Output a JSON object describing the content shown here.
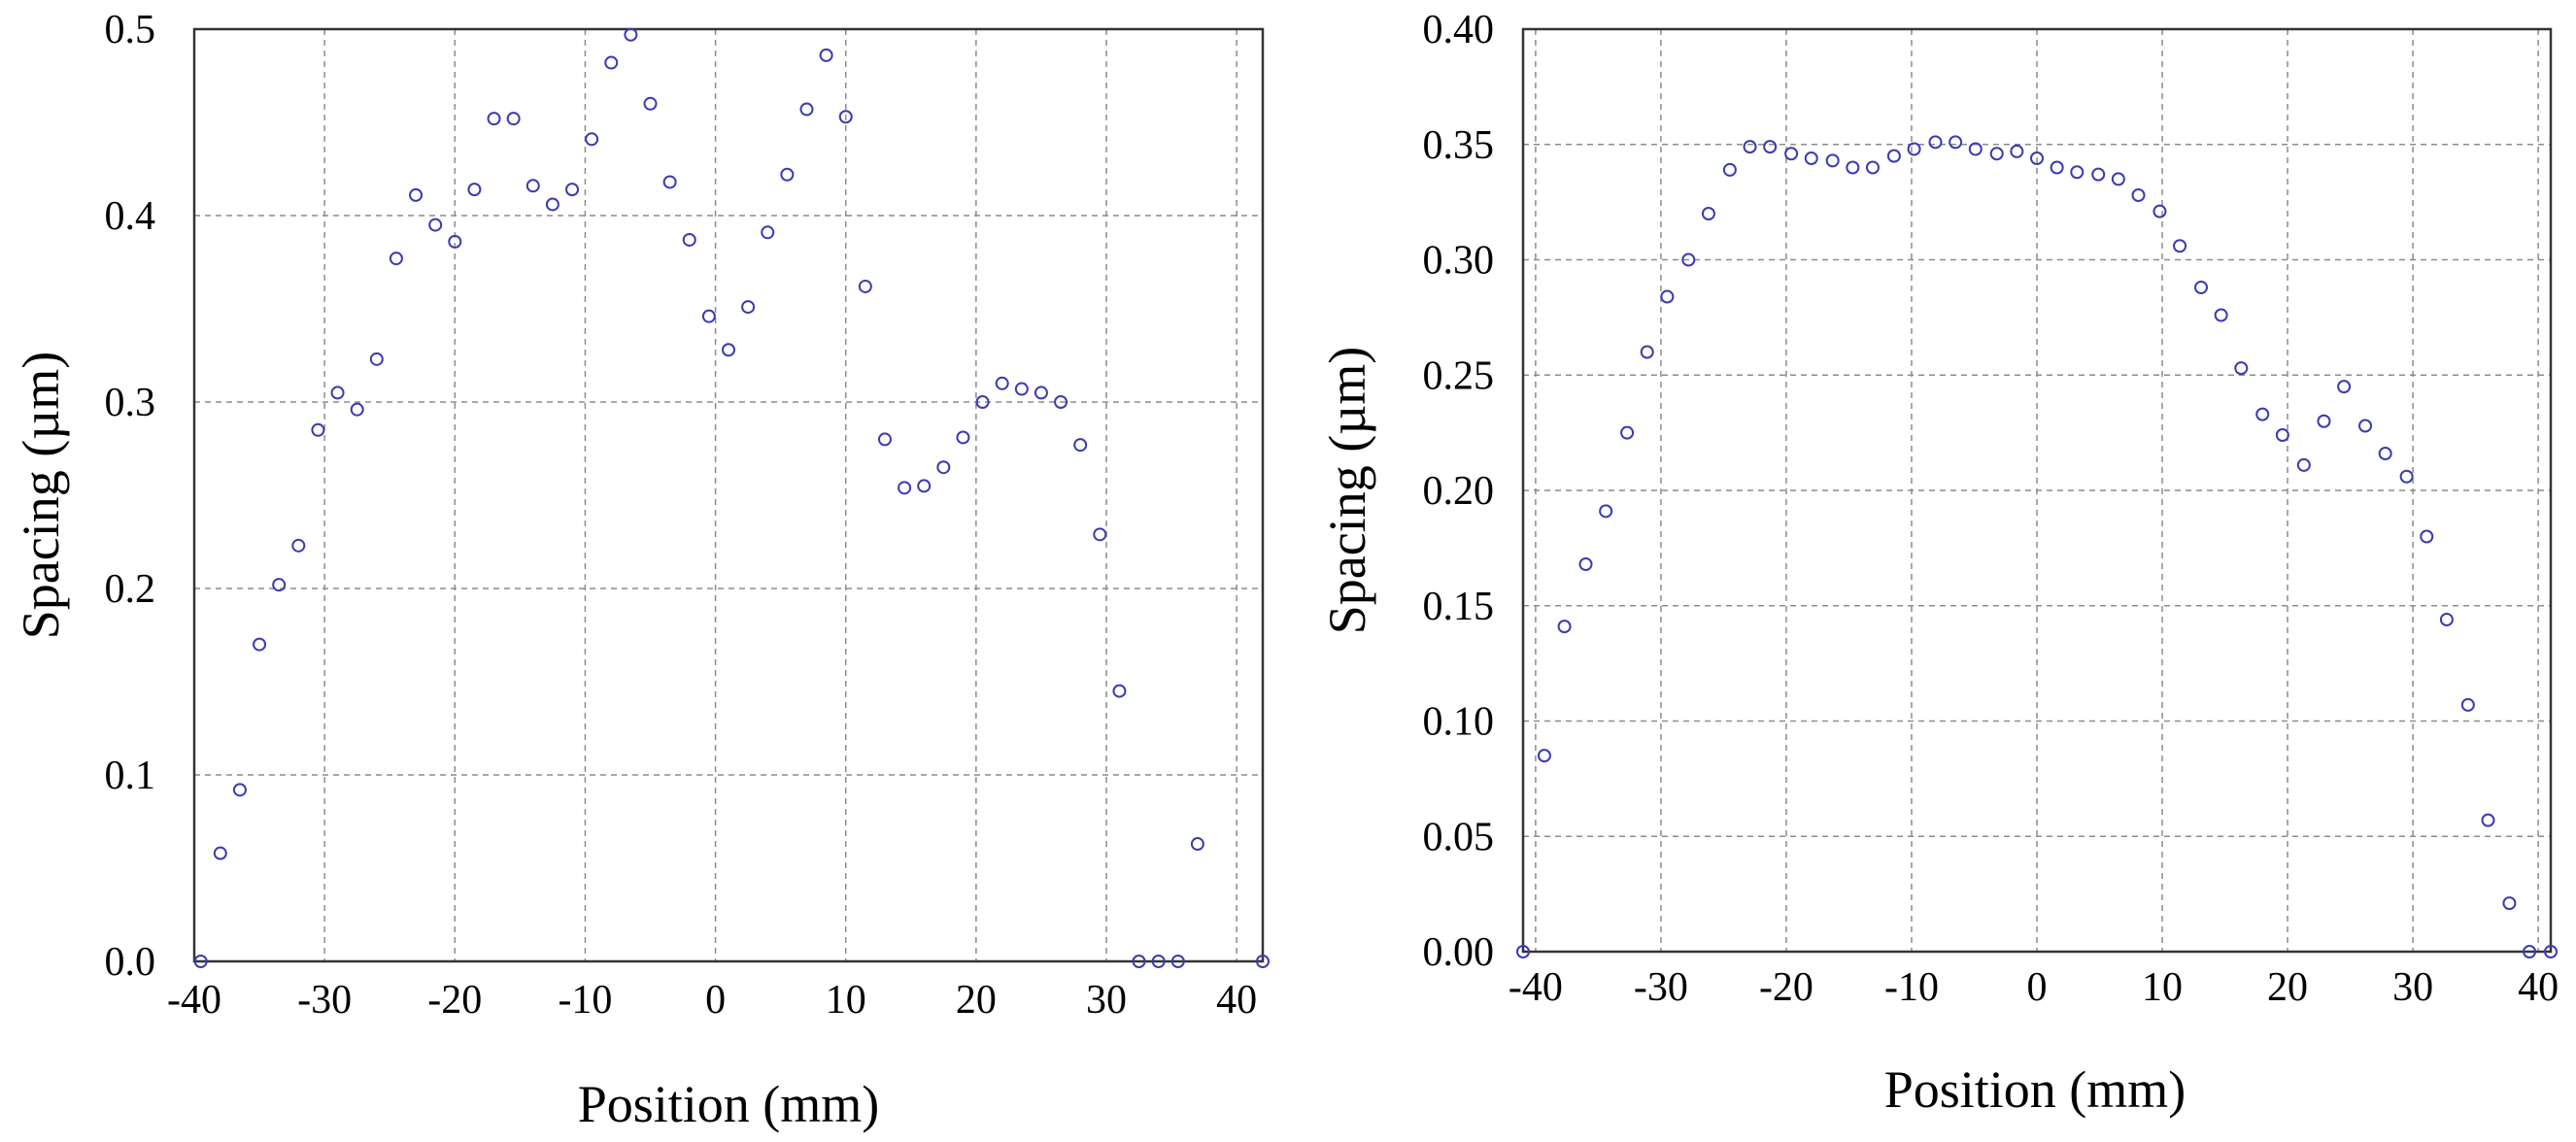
{
  "colors": {
    "marker": "#3b3bb3",
    "grid": "#8c8c8c",
    "frame": "#333333"
  },
  "chart_data": [
    {
      "type": "scatter",
      "xlabel": "Position (mm)",
      "ylabel": "Spacing  (µm)",
      "xlim": [
        -40,
        42
      ],
      "ylim": [
        0,
        0.5
      ],
      "xticks": [
        -40,
        -30,
        -20,
        -10,
        0,
        10,
        20,
        30,
        40
      ],
      "xtick_labels": [
        "-40",
        "-30",
        "-20",
        "-10",
        "0",
        "10",
        "20",
        "30",
        "40"
      ],
      "yticks": [
        0,
        0.1,
        0.2,
        0.3,
        0.4,
        0.5
      ],
      "ytick_labels": [
        "0.0",
        "0.1",
        "0.2",
        "0.3",
        "0.4",
        "0.5"
      ],
      "grid": true,
      "x": [
        -39.5,
        -38.0,
        -36.5,
        -35.0,
        -33.5,
        -32.0,
        -30.5,
        -29.0,
        -27.5,
        -26.0,
        -24.5,
        -23.0,
        -21.5,
        -20.0,
        -18.5,
        -17.0,
        -15.5,
        -14.0,
        -12.5,
        -11.0,
        -9.5,
        -8.0,
        -6.5,
        -5.0,
        -3.5,
        -2.0,
        -0.5,
        1.0,
        2.5,
        4.0,
        5.5,
        7.0,
        8.5,
        10.0,
        11.5,
        13.0,
        14.5,
        16.0,
        17.5,
        19.0,
        20.5,
        22.0,
        23.5,
        25.0,
        26.5,
        28.0,
        29.5,
        31.0,
        32.5,
        34.0,
        35.5,
        37.0,
        42.0
      ],
      "y": [
        0.0,
        0.058,
        0.092,
        0.17,
        0.202,
        0.223,
        0.285,
        0.305,
        0.296,
        0.323,
        0.377,
        0.411,
        0.395,
        0.386,
        0.414,
        0.452,
        0.452,
        0.416,
        0.406,
        0.414,
        0.441,
        0.482,
        0.497,
        0.46,
        0.418,
        0.387,
        0.346,
        0.328,
        0.351,
        0.391,
        0.422,
        0.457,
        0.486,
        0.453,
        0.362,
        0.28,
        0.254,
        0.255,
        0.265,
        0.281,
        0.3,
        0.31,
        0.307,
        0.305,
        0.3,
        0.277,
        0.229,
        0.145,
        0.0,
        0.0,
        0.0,
        0.063,
        0.0
      ]
    },
    {
      "type": "scatter",
      "xlabel": "Position (mm)",
      "ylabel": "Spacing  (µm)",
      "xlim": [
        -41,
        41
      ],
      "ylim": [
        0,
        0.4
      ],
      "xticks": [
        -40,
        -30,
        -20,
        -10,
        0,
        10,
        20,
        30,
        40
      ],
      "xtick_labels": [
        "-40",
        "-30",
        "-20",
        "-10",
        "0",
        "10",
        "20",
        "30",
        "40"
      ],
      "yticks": [
        0,
        0.05,
        0.1,
        0.15,
        0.2,
        0.25,
        0.3,
        0.35,
        0.4
      ],
      "ytick_labels": [
        "0.00",
        "0.05",
        "0.10",
        "0.15",
        "0.20",
        "0.25",
        "0.30",
        "0.35",
        "0.40"
      ],
      "grid": true,
      "x": [
        -41.0,
        -39.3,
        -37.7,
        -36.0,
        -34.4,
        -32.7,
        -31.1,
        -29.5,
        -27.8,
        -26.2,
        -24.5,
        -22.9,
        -21.3,
        -19.6,
        -18.0,
        -16.3,
        -14.7,
        -13.1,
        -11.4,
        -9.8,
        -8.1,
        -6.5,
        -4.9,
        -3.2,
        -1.6,
        0.0,
        1.6,
        3.2,
        4.9,
        6.5,
        8.1,
        9.8,
        11.4,
        13.1,
        14.7,
        16.3,
        18.0,
        19.6,
        21.3,
        22.9,
        24.5,
        26.2,
        27.8,
        29.5,
        31.1,
        32.7,
        34.4,
        36.0,
        37.7,
        39.3,
        41.0
      ],
      "y": [
        0.0,
        0.085,
        0.141,
        0.168,
        0.191,
        0.225,
        0.26,
        0.284,
        0.3,
        0.32,
        0.339,
        0.349,
        0.349,
        0.346,
        0.344,
        0.343,
        0.34,
        0.34,
        0.345,
        0.348,
        0.351,
        0.351,
        0.348,
        0.346,
        0.347,
        0.344,
        0.34,
        0.338,
        0.337,
        0.335,
        0.328,
        0.321,
        0.306,
        0.288,
        0.276,
        0.253,
        0.233,
        0.224,
        0.211,
        0.23,
        0.245,
        0.228,
        0.216,
        0.206,
        0.18,
        0.144,
        0.107,
        0.057,
        0.021,
        0.0,
        0.0
      ]
    }
  ]
}
